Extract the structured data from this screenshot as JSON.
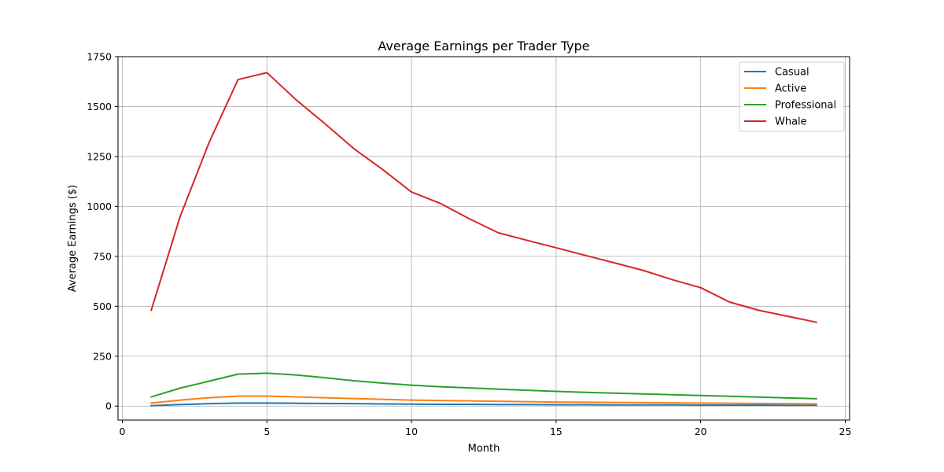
{
  "chart_data": {
    "type": "line",
    "title": "Average Earnings per Trader Type",
    "xlabel": "Month",
    "ylabel": "Average Earnings ($)",
    "xlim": [
      -0.15,
      25.15
    ],
    "ylim": [
      -70,
      1750
    ],
    "xticks": [
      0,
      5,
      10,
      15,
      20,
      25
    ],
    "yticks": [
      0,
      250,
      500,
      750,
      1000,
      1250,
      1500,
      1750
    ],
    "grid": true,
    "legend_position": "top-right",
    "x": [
      1,
      2,
      3,
      4,
      5,
      6,
      7,
      8,
      9,
      10,
      11,
      12,
      13,
      14,
      15,
      16,
      17,
      18,
      19,
      20,
      21,
      22,
      23,
      24
    ],
    "series": [
      {
        "name": "Casual",
        "color": "#1f77b4",
        "values": [
          2,
          8,
          12,
          15,
          15,
          14,
          13,
          12,
          11,
          10,
          9,
          9,
          8,
          8,
          7,
          7,
          6,
          6,
          6,
          5,
          5,
          5,
          4,
          4
        ]
      },
      {
        "name": "Active",
        "color": "#ff7f0e",
        "values": [
          15,
          30,
          42,
          50,
          50,
          46,
          42,
          38,
          34,
          30,
          28,
          26,
          24,
          22,
          20,
          19,
          18,
          17,
          16,
          15,
          14,
          13,
          12,
          11
        ]
      },
      {
        "name": "Professional",
        "color": "#2ca02c",
        "values": [
          46,
          90,
          125,
          160,
          165,
          156,
          142,
          127,
          115,
          105,
          97,
          91,
          85,
          79,
          74,
          69,
          65,
          61,
          57,
          53,
          49,
          45,
          41,
          37
        ]
      },
      {
        "name": "Whale",
        "color": "#d62728",
        "values": [
          480,
          950,
          1320,
          1635,
          1670,
          1535,
          1415,
          1290,
          1185,
          1072,
          1015,
          938,
          868,
          830,
          793,
          755,
          718,
          680,
          634,
          593,
          521,
          480,
          450,
          420
        ]
      }
    ]
  }
}
